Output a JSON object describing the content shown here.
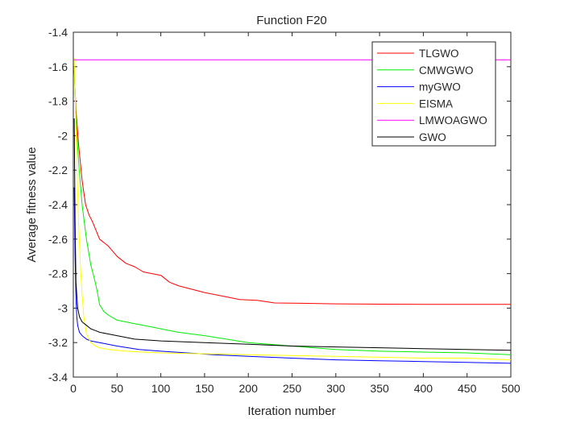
{
  "chart_data": {
    "type": "line",
    "title": "Function F20",
    "xlabel": "Iteration number",
    "ylabel": "Average fitness value",
    "xlim": [
      0,
      500
    ],
    "ylim": [
      -3.4,
      -1.4
    ],
    "xticks": [
      0,
      50,
      100,
      150,
      200,
      250,
      300,
      350,
      400,
      450,
      500
    ],
    "yticks": [
      -3.4,
      -3.2,
      -3,
      -2.8,
      -2.6,
      -2.4,
      -2.2,
      -2,
      -1.8,
      -1.6,
      -1.4
    ],
    "ytick_labels": [
      "-3.4",
      "-3.2",
      "-3",
      "-2.8",
      "-2.6",
      "-2.4",
      "-2.2",
      "-2",
      "-1.8",
      "-1.6",
      "-1.4"
    ],
    "grid": false,
    "legend_position": "top-right",
    "series": [
      {
        "name": "TLGWO",
        "color": "#ff0000",
        "x": [
          1,
          3,
          6,
          10,
          14,
          18,
          22,
          26,
          30,
          40,
          50,
          60,
          70,
          80,
          90,
          100,
          110,
          120,
          135,
          150,
          170,
          190,
          210,
          230,
          260,
          300,
          350,
          400,
          450,
          500
        ],
        "y": [
          -1.62,
          -1.85,
          -2.05,
          -2.26,
          -2.4,
          -2.46,
          -2.5,
          -2.55,
          -2.6,
          -2.64,
          -2.7,
          -2.74,
          -2.76,
          -2.79,
          -2.8,
          -2.81,
          -2.85,
          -2.87,
          -2.89,
          -2.91,
          -2.93,
          -2.95,
          -2.955,
          -2.97,
          -2.972,
          -2.975,
          -2.977,
          -2.978,
          -2.978,
          -2.978
        ]
      },
      {
        "name": "CMWGWO",
        "color": "#00ee00",
        "x": [
          1,
          3,
          6,
          10,
          15,
          20,
          25,
          28,
          30,
          35,
          40,
          50,
          60,
          70,
          80,
          90,
          100,
          110,
          120,
          150,
          200,
          250,
          300,
          350,
          400,
          450,
          500
        ],
        "y": [
          -1.6,
          -1.9,
          -2.15,
          -2.4,
          -2.6,
          -2.75,
          -2.85,
          -2.92,
          -2.98,
          -3.02,
          -3.04,
          -3.07,
          -3.08,
          -3.09,
          -3.1,
          -3.11,
          -3.12,
          -3.13,
          -3.14,
          -3.16,
          -3.2,
          -3.22,
          -3.24,
          -3.25,
          -3.255,
          -3.26,
          -3.27
        ]
      },
      {
        "name": "myGWO",
        "color": "#0000ff",
        "x": [
          1,
          2,
          3,
          4,
          5,
          7,
          10,
          15,
          20,
          30,
          50,
          75,
          100,
          130,
          160,
          200,
          250,
          300,
          350,
          400,
          450,
          500
        ],
        "y": [
          -2.3,
          -2.7,
          -2.95,
          -3.05,
          -3.1,
          -3.14,
          -3.16,
          -3.18,
          -3.19,
          -3.2,
          -3.22,
          -3.24,
          -3.25,
          -3.26,
          -3.27,
          -3.28,
          -3.29,
          -3.3,
          -3.305,
          -3.31,
          -3.315,
          -3.32
        ]
      },
      {
        "name": "EISMA",
        "color": "#ffff00",
        "x": [
          1,
          2,
          4,
          6,
          8,
          10,
          12,
          15,
          18,
          20,
          25,
          30,
          40,
          60,
          80,
          100,
          150,
          200,
          250,
          300,
          350,
          400,
          450,
          500
        ],
        "y": [
          -1.55,
          -1.75,
          -2.15,
          -2.5,
          -2.75,
          -2.92,
          -3.05,
          -3.15,
          -3.18,
          -3.2,
          -3.22,
          -3.23,
          -3.24,
          -3.25,
          -3.255,
          -3.26,
          -3.265,
          -3.27,
          -3.275,
          -3.28,
          -3.285,
          -3.29,
          -3.29,
          -3.3
        ]
      },
      {
        "name": "LMWOAGWO",
        "color": "#ff00ff",
        "x": [
          0,
          500
        ],
        "y": [
          -1.56,
          -1.56
        ]
      },
      {
        "name": "GWO",
        "color": "#000000",
        "x": [
          1,
          2,
          3,
          5,
          7,
          10,
          15,
          20,
          25,
          30,
          40,
          50,
          70,
          100,
          150,
          200,
          250,
          300,
          350,
          400,
          450,
          500
        ],
        "y": [
          -1.9,
          -2.5,
          -2.85,
          -3.0,
          -3.05,
          -3.08,
          -3.1,
          -3.12,
          -3.13,
          -3.14,
          -3.15,
          -3.16,
          -3.18,
          -3.19,
          -3.2,
          -3.21,
          -3.22,
          -3.225,
          -3.23,
          -3.235,
          -3.24,
          -3.245
        ]
      }
    ]
  }
}
